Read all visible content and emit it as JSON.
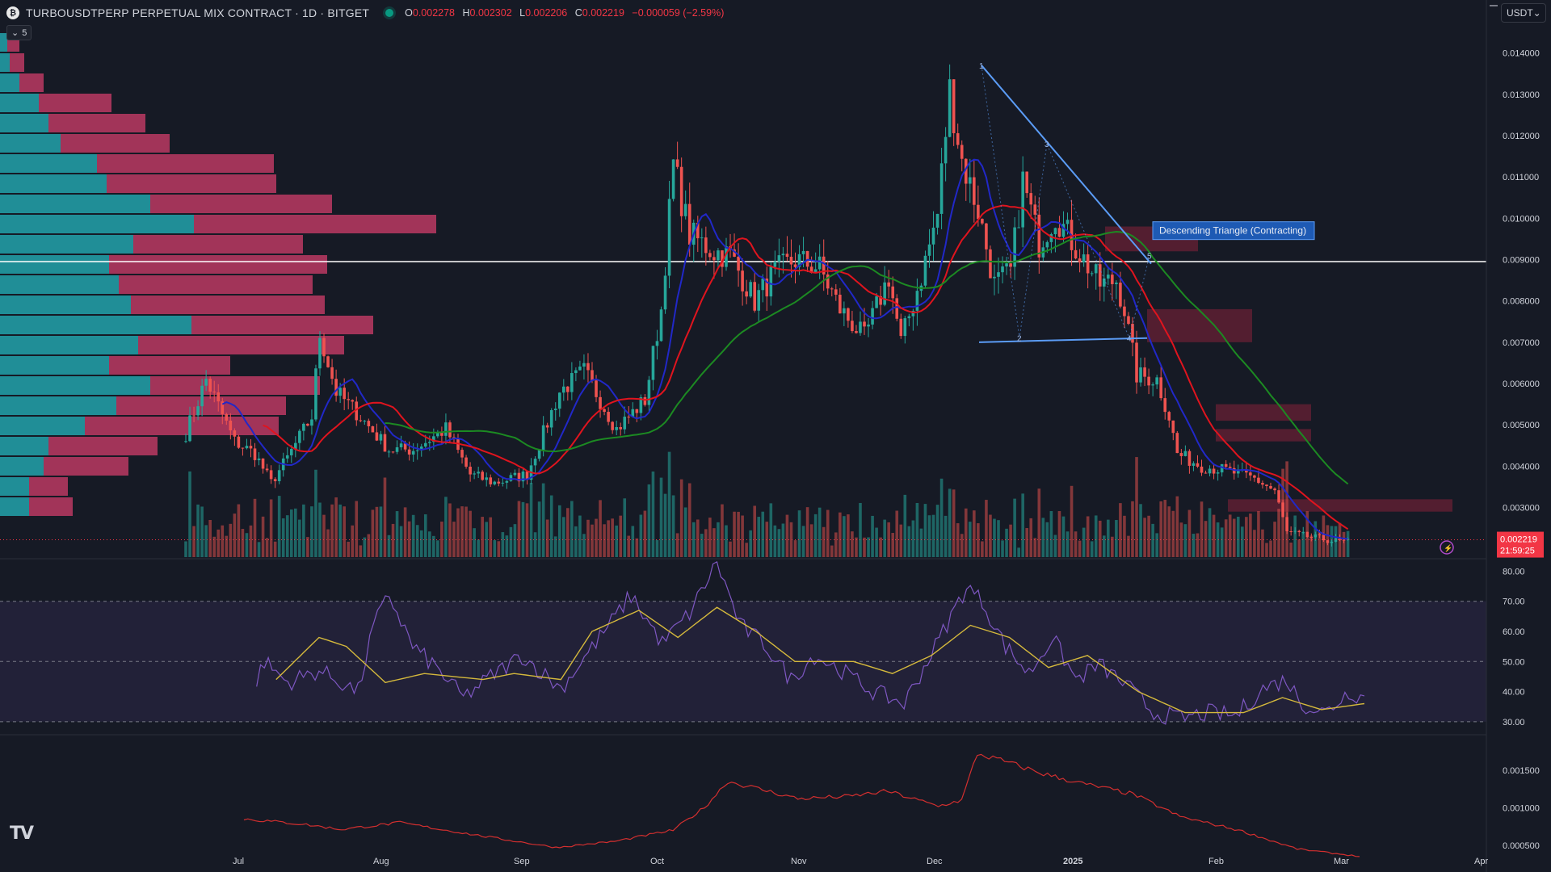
{
  "header": {
    "symbol_icon": "bitget-coin-icon",
    "symbol_title": "TURBOUSDTPERP PERPETUAL MIX CONTRACT · 1D · BITGET",
    "ohlc": [
      {
        "key": "O",
        "value": "0.002278"
      },
      {
        "key": "H",
        "value": "0.002302"
      },
      {
        "key": "L",
        "value": "0.002206"
      },
      {
        "key": "C",
        "value": "0.002219"
      },
      {
        "key": "",
        "value": "−0.000059 (−2.59%)"
      }
    ],
    "collapse_label": "5",
    "currency": "USDT",
    "logo": "TV"
  },
  "colors": {
    "background": "#161a25",
    "up": "#26a69a",
    "down": "#ef5350",
    "ma_fast": "#2128c8",
    "ma_mid": "#e0141e",
    "ma_slow": "#1c8a22",
    "rsi": "#7e57c2",
    "rsi_ma": "#d5b93c",
    "price_tag": "#f23645"
  },
  "chart_data": [
    {
      "type": "candlestick",
      "name": "price",
      "x_labels": [
        "Jul",
        "Aug",
        "Sep",
        "Oct",
        "Nov",
        "Dec",
        "2025",
        "Feb",
        "Mar",
        "Apr"
      ],
      "ylim": [
        0.0018,
        0.0145
      ],
      "y_ticks": [
        "0.014000",
        "0.013000",
        "0.012000",
        "0.011000",
        "0.010000",
        "0.009000",
        "0.008000",
        "0.007000",
        "0.006000",
        "0.005000",
        "0.004000",
        "0.003000"
      ],
      "last_price": "0.002219",
      "countdown": "21:59:25",
      "horizontal_line": 0.00895,
      "close_anchors": [
        [
          0,
          0.0048
        ],
        [
          5,
          0.0061
        ],
        [
          12,
          0.0046
        ],
        [
          17,
          0.0043
        ],
        [
          21,
          0.0036
        ],
        [
          25,
          0.0042
        ],
        [
          31,
          0.0052
        ],
        [
          33,
          0.0072
        ],
        [
          37,
          0.0058
        ],
        [
          42,
          0.0053
        ],
        [
          50,
          0.0044
        ],
        [
          56,
          0.0044
        ],
        [
          64,
          0.0049
        ],
        [
          70,
          0.0038
        ],
        [
          76,
          0.0036
        ],
        [
          84,
          0.0038
        ],
        [
          92,
          0.0058
        ],
        [
          98,
          0.0063
        ],
        [
          106,
          0.0049
        ],
        [
          113,
          0.0056
        ],
        [
          117,
          0.0078
        ],
        [
          120,
          0.0113
        ],
        [
          124,
          0.0096
        ],
        [
          130,
          0.0092
        ],
        [
          134,
          0.0091
        ],
        [
          140,
          0.008
        ],
        [
          145,
          0.0087
        ],
        [
          150,
          0.009
        ],
        [
          156,
          0.0088
        ],
        [
          161,
          0.0078
        ],
        [
          167,
          0.0071
        ],
        [
          173,
          0.0086
        ],
        [
          176,
          0.007
        ],
        [
          181,
          0.0086
        ],
        [
          185,
          0.0101
        ],
        [
          188,
          0.0131
        ],
        [
          191,
          0.0114
        ],
        [
          195,
          0.0102
        ],
        [
          199,
          0.0084
        ],
        [
          203,
          0.0087
        ],
        [
          206,
          0.0109
        ],
        [
          210,
          0.0094
        ],
        [
          214,
          0.0101
        ],
        [
          219,
          0.0093
        ],
        [
          225,
          0.0084
        ],
        [
          229,
          0.0085
        ],
        [
          231,
          0.0078
        ],
        [
          234,
          0.0062
        ],
        [
          239,
          0.0061
        ],
        [
          242,
          0.0052
        ],
        [
          244,
          0.0043
        ],
        [
          250,
          0.004
        ],
        [
          256,
          0.0039
        ],
        [
          263,
          0.0037
        ],
        [
          268,
          0.0034
        ],
        [
          271,
          0.0024
        ],
        [
          276,
          0.0023
        ],
        [
          282,
          0.0022
        ]
      ],
      "annotations": {
        "pattern_label": "Descending Triangle (Contracting)",
        "pattern_points": [
          "1",
          "2",
          "3",
          "4",
          "5"
        ]
      }
    },
    {
      "type": "bar",
      "name": "volume_profile",
      "rows": [
        {
          "up": 0.03,
          "down": 0.05
        },
        {
          "up": 0.04,
          "down": 0.06
        },
        {
          "up": 0.08,
          "down": 0.1
        },
        {
          "up": 0.16,
          "down": 0.3
        },
        {
          "up": 0.2,
          "down": 0.4
        },
        {
          "up": 0.25,
          "down": 0.45
        },
        {
          "up": 0.4,
          "down": 0.73
        },
        {
          "up": 0.44,
          "down": 0.7
        },
        {
          "up": 0.62,
          "down": 0.75
        },
        {
          "up": 0.8,
          "down": 1.0
        },
        {
          "up": 0.55,
          "down": 0.7
        },
        {
          "up": 0.45,
          "down": 0.9
        },
        {
          "up": 0.49,
          "down": 0.8
        },
        {
          "up": 0.54,
          "down": 0.8
        },
        {
          "up": 0.79,
          "down": 0.75
        },
        {
          "up": 0.57,
          "down": 0.85
        },
        {
          "up": 0.45,
          "down": 0.5
        },
        {
          "up": 0.62,
          "down": 0.7
        },
        {
          "up": 0.48,
          "down": 0.7
        },
        {
          "up": 0.35,
          "down": 0.8
        },
        {
          "up": 0.2,
          "down": 0.45
        },
        {
          "up": 0.18,
          "down": 0.35
        },
        {
          "up": 0.12,
          "down": 0.16
        },
        {
          "up": 0.12,
          "down": 0.18
        }
      ]
    },
    {
      "type": "line",
      "name": "rsi",
      "ylim": [
        27,
        82
      ],
      "y_ticks": [
        "80.00",
        "70.00",
        "60.00",
        "50.00",
        "40.00",
        "30.00"
      ],
      "overbought": 70,
      "oversold": 30,
      "midline": 50,
      "anchors": [
        [
          0,
          38
        ],
        [
          4,
          50
        ],
        [
          10,
          43
        ],
        [
          18,
          47
        ],
        [
          28,
          40
        ],
        [
          32,
          62
        ],
        [
          36,
          72
        ],
        [
          42,
          55
        ],
        [
          48,
          48
        ],
        [
          55,
          38
        ],
        [
          62,
          45
        ],
        [
          70,
          52
        ],
        [
          80,
          41
        ],
        [
          90,
          58
        ],
        [
          98,
          72
        ],
        [
          106,
          56
        ],
        [
          113,
          66
        ],
        [
          120,
          83
        ],
        [
          126,
          62
        ],
        [
          132,
          56
        ],
        [
          139,
          44
        ],
        [
          145,
          52
        ],
        [
          152,
          47
        ],
        [
          160,
          40
        ],
        [
          168,
          36
        ],
        [
          176,
          55
        ],
        [
          184,
          75
        ],
        [
          188,
          70
        ],
        [
          194,
          55
        ],
        [
          200,
          46
        ],
        [
          206,
          58
        ],
        [
          212,
          44
        ],
        [
          218,
          49
        ],
        [
          225,
          42
        ],
        [
          232,
          33
        ],
        [
          239,
          31
        ],
        [
          246,
          33
        ],
        [
          253,
          32
        ],
        [
          260,
          41
        ],
        [
          266,
          44
        ],
        [
          270,
          36
        ],
        [
          276,
          33
        ],
        [
          282,
          40
        ],
        [
          286,
          38
        ]
      ],
      "ma_anchors": [
        [
          7,
          44
        ],
        [
          18,
          58
        ],
        [
          25,
          55
        ],
        [
          35,
          43
        ],
        [
          45,
          46
        ],
        [
          60,
          44
        ],
        [
          68,
          46
        ],
        [
          80,
          44
        ],
        [
          88,
          60
        ],
        [
          100,
          67
        ],
        [
          110,
          58
        ],
        [
          120,
          68
        ],
        [
          130,
          60
        ],
        [
          140,
          50
        ],
        [
          155,
          50
        ],
        [
          165,
          46
        ],
        [
          175,
          52
        ],
        [
          185,
          62
        ],
        [
          195,
          58
        ],
        [
          205,
          48
        ],
        [
          215,
          52
        ],
        [
          228,
          40
        ],
        [
          240,
          33
        ],
        [
          255,
          33
        ],
        [
          265,
          38
        ],
        [
          275,
          34
        ],
        [
          286,
          36
        ]
      ]
    },
    {
      "type": "line",
      "name": "indicator_3",
      "ylim": [
        0.00025,
        0.00195
      ],
      "y_ticks": [
        "0.001500",
        "0.001000",
        "0.000500"
      ],
      "anchors": [
        [
          0,
          0.00085
        ],
        [
          15,
          0.00078
        ],
        [
          25,
          0.00071
        ],
        [
          40,
          0.0008
        ],
        [
          60,
          0.00063
        ],
        [
          80,
          0.00047
        ],
        [
          95,
          0.00055
        ],
        [
          110,
          0.0007
        ],
        [
          118,
          0.001
        ],
        [
          124,
          0.00135
        ],
        [
          132,
          0.00125
        ],
        [
          142,
          0.00112
        ],
        [
          155,
          0.00115
        ],
        [
          165,
          0.00122
        ],
        [
          178,
          0.00102
        ],
        [
          184,
          0.0011
        ],
        [
          188,
          0.00172
        ],
        [
          196,
          0.0016
        ],
        [
          205,
          0.00145
        ],
        [
          215,
          0.00132
        ],
        [
          228,
          0.00118
        ],
        [
          240,
          0.00088
        ],
        [
          255,
          0.0007
        ],
        [
          270,
          0.00045
        ],
        [
          286,
          0.00035
        ]
      ]
    }
  ]
}
